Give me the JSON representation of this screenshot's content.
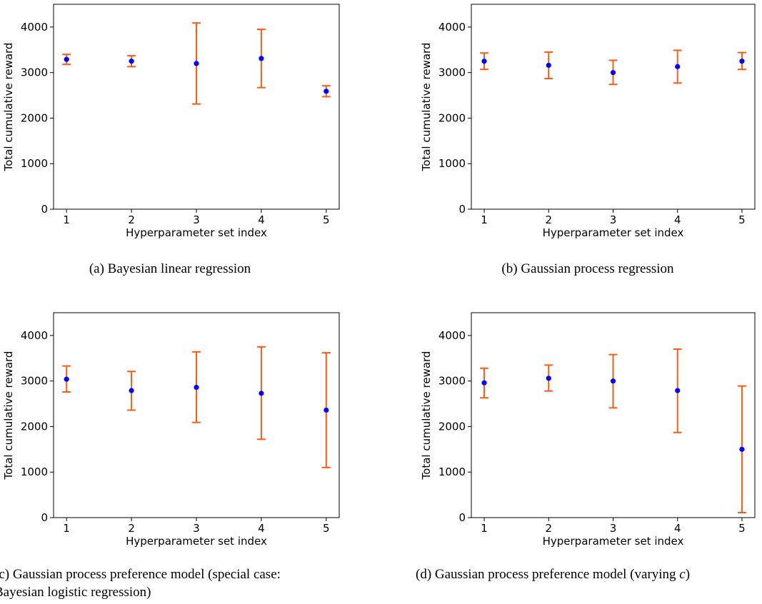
{
  "chart_data": [
    {
      "type": "scatter",
      "caption": "(a) Bayesian linear regression",
      "xlabel": "Hyperparameter set index",
      "ylabel": "Total cumulative reward",
      "x": [
        1,
        2,
        3,
        4,
        5
      ],
      "xticks": [
        "1",
        "2",
        "3",
        "4",
        "5"
      ],
      "yticks": [
        "0",
        "1000",
        "2000",
        "3000",
        "4000"
      ],
      "xlim": [
        0.8,
        5.2
      ],
      "ylim": [
        0,
        4500
      ],
      "values": [
        3290,
        3250,
        3200,
        3310,
        2590
      ],
      "err_low": [
        3180,
        3130,
        2310,
        2670,
        2470
      ],
      "err_high": [
        3400,
        3370,
        4090,
        3950,
        2710
      ],
      "grid": false
    },
    {
      "type": "scatter",
      "caption": "(b) Gaussian process regression",
      "xlabel": "Hyperparameter set index",
      "ylabel": "Total cumulative reward",
      "x": [
        1,
        2,
        3,
        4,
        5
      ],
      "xticks": [
        "1",
        "2",
        "3",
        "4",
        "5"
      ],
      "yticks": [
        "0",
        "1000",
        "2000",
        "3000",
        "4000"
      ],
      "xlim": [
        0.8,
        5.2
      ],
      "ylim": [
        0,
        4500
      ],
      "values": [
        3250,
        3160,
        3000,
        3130,
        3250
      ],
      "err_low": [
        3070,
        2870,
        2740,
        2770,
        3070
      ],
      "err_high": [
        3430,
        3450,
        3270,
        3490,
        3440
      ],
      "grid": false
    },
    {
      "type": "scatter",
      "caption": "(c) Gaussian process preference model (special case:",
      "caption_line2": "Bayesian logistic regression)",
      "xlabel": "Hyperparameter set index",
      "ylabel": "Total cumulative reward",
      "x": [
        1,
        2,
        3,
        4,
        5
      ],
      "xticks": [
        "1",
        "2",
        "3",
        "4",
        "5"
      ],
      "yticks": [
        "0",
        "1000",
        "2000",
        "3000",
        "4000"
      ],
      "xlim": [
        0.8,
        5.2
      ],
      "ylim": [
        0,
        4500
      ],
      "values": [
        3040,
        2790,
        2860,
        2730,
        2360
      ],
      "err_low": [
        2760,
        2360,
        2090,
        1720,
        1100
      ],
      "err_high": [
        3330,
        3210,
        3640,
        3750,
        3620
      ],
      "grid": false
    },
    {
      "type": "scatter",
      "caption": "(d) Gaussian process preference model (varying ",
      "caption_var": "c",
      "caption_end": ")",
      "xlabel": "Hyperparameter set index",
      "ylabel": "Total cumulative reward",
      "x": [
        1,
        2,
        3,
        4,
        5
      ],
      "xticks": [
        "1",
        "2",
        "3",
        "4",
        "5"
      ],
      "yticks": [
        "0",
        "1000",
        "2000",
        "3000",
        "4000"
      ],
      "xlim": [
        0.8,
        5.2
      ],
      "ylim": [
        0,
        4500
      ],
      "values": [
        2960,
        3060,
        3000,
        2790,
        1500
      ],
      "err_low": [
        2630,
        2780,
        2410,
        1870,
        110
      ],
      "err_high": [
        3280,
        3350,
        3580,
        3700,
        2890
      ],
      "grid": false
    }
  ],
  "colors": {
    "point": "#0000ff",
    "errorbar": "#ff5a14",
    "axis": "#000000"
  }
}
